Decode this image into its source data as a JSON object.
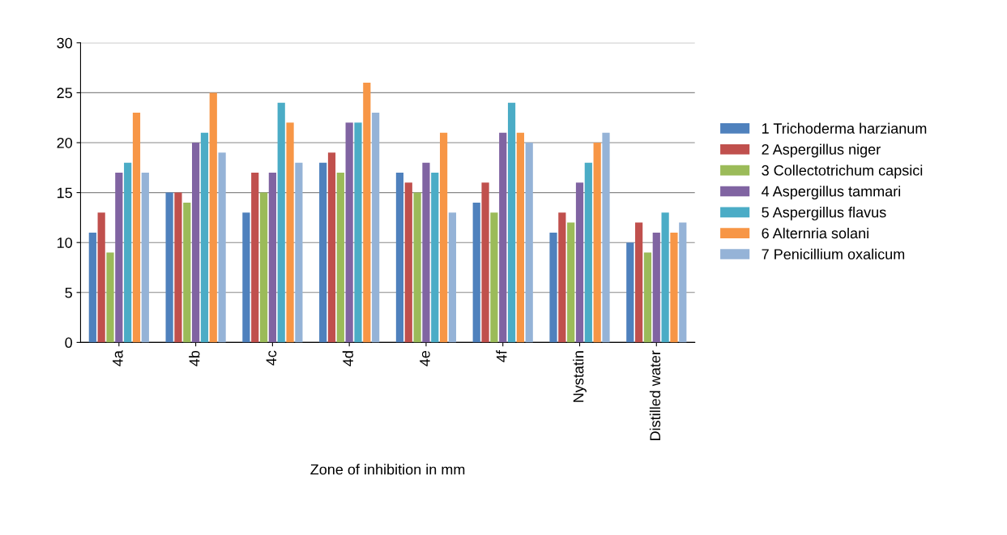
{
  "chart_data": {
    "type": "bar",
    "xlabel": "Zone of inhibition in mm",
    "categories": [
      "4a",
      "4b",
      "4c",
      "4d",
      "4e",
      "4f",
      "Nystatin",
      "Distilled water"
    ],
    "series": [
      {
        "name": "1 Trichoderma harzianum",
        "color": "#4f81bd",
        "values": [
          11,
          15,
          13,
          18,
          17,
          14,
          11,
          10
        ]
      },
      {
        "name": "2 Aspergillus niger",
        "color": "#c0504d",
        "values": [
          13,
          15,
          17,
          19,
          16,
          16,
          13,
          12
        ]
      },
      {
        "name": "3 Collectotrichum capsici",
        "color": "#9bbb59",
        "values": [
          9,
          14,
          15,
          17,
          15,
          13,
          12,
          9
        ]
      },
      {
        "name": "4 Aspergillus tammari",
        "color": "#8064a2",
        "values": [
          17,
          20,
          17,
          22,
          18,
          21,
          16,
          11
        ]
      },
      {
        "name": "5 Aspergillus flavus",
        "color": "#4bacc6",
        "values": [
          18,
          21,
          24,
          22,
          17,
          24,
          18,
          13
        ]
      },
      {
        "name": "6 Alternria solani",
        "color": "#f79646",
        "values": [
          23,
          25,
          22,
          26,
          21,
          21,
          20,
          11
        ]
      },
      {
        "name": "7 Penicillium oxalicum",
        "color": "#95b3d7",
        "values": [
          17,
          19,
          18,
          23,
          13,
          20,
          21,
          12
        ]
      }
    ],
    "ylim": [
      0,
      30
    ],
    "yticks": [
      0,
      5,
      10,
      15,
      20,
      25,
      30
    ],
    "grid": "y",
    "legend": "right"
  }
}
